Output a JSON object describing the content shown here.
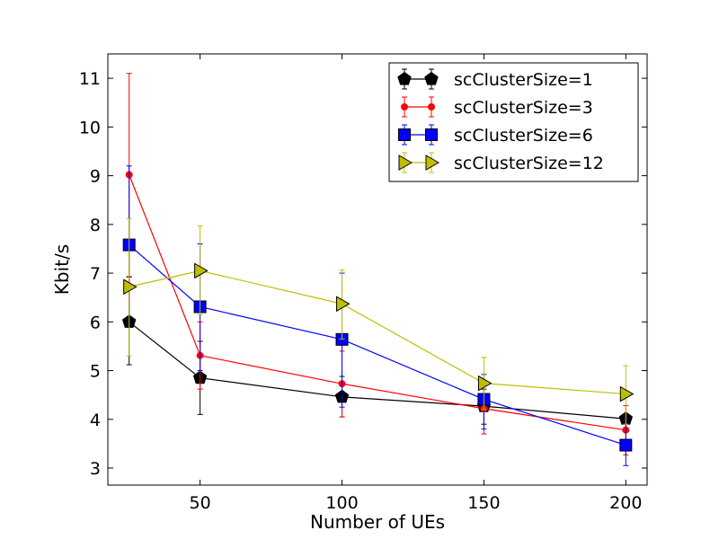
{
  "chart_data": {
    "type": "line",
    "xlabel": "Number of UEs",
    "ylabel": "Kbit/s",
    "xlim": [
      17.5,
      207.5
    ],
    "ylim": [
      2.65,
      11.5
    ],
    "xticks": [
      50,
      100,
      150,
      200
    ],
    "yticks": [
      3,
      4,
      5,
      6,
      7,
      8,
      9,
      10,
      11
    ],
    "x": [
      25,
      50,
      100,
      150,
      200
    ],
    "legend_position": "top-right",
    "grid": false,
    "series": [
      {
        "name": "scClusterSize=1",
        "color": "#000000",
        "marker": "pentagon",
        "values": [
          6.0,
          4.85,
          4.46,
          4.27,
          4.01
        ],
        "err_low": [
          5.12,
          4.1,
          4.05,
          3.9,
          3.93
        ],
        "err_high": [
          6.92,
          5.6,
          4.88,
          4.62,
          4.1
        ]
      },
      {
        "name": "scClusterSize=3",
        "color": "#ff0000",
        "marker": "circle",
        "values": [
          9.02,
          5.31,
          4.73,
          4.22,
          3.78
        ],
        "err_low": [
          6.93,
          4.62,
          4.05,
          3.7,
          3.27
        ],
        "err_high": [
          11.1,
          6.0,
          5.4,
          4.7,
          4.28
        ]
      },
      {
        "name": "scClusterSize=6",
        "color": "#0000ff",
        "marker": "square",
        "values": [
          7.58,
          6.31,
          5.64,
          4.41,
          3.47
        ],
        "err_low": [
          5.95,
          5.0,
          4.25,
          3.8,
          3.05
        ],
        "err_high": [
          9.2,
          7.6,
          7.0,
          4.92,
          4.0
        ]
      },
      {
        "name": "scClusterSize=12",
        "color": "#bfbf00",
        "marker": "triangle-right",
        "values": [
          6.72,
          7.05,
          6.37,
          4.74,
          4.52
        ],
        "err_low": [
          5.3,
          6.15,
          5.65,
          4.2,
          3.9
        ],
        "err_high": [
          8.12,
          7.97,
          7.07,
          5.27,
          5.1
        ]
      }
    ]
  }
}
